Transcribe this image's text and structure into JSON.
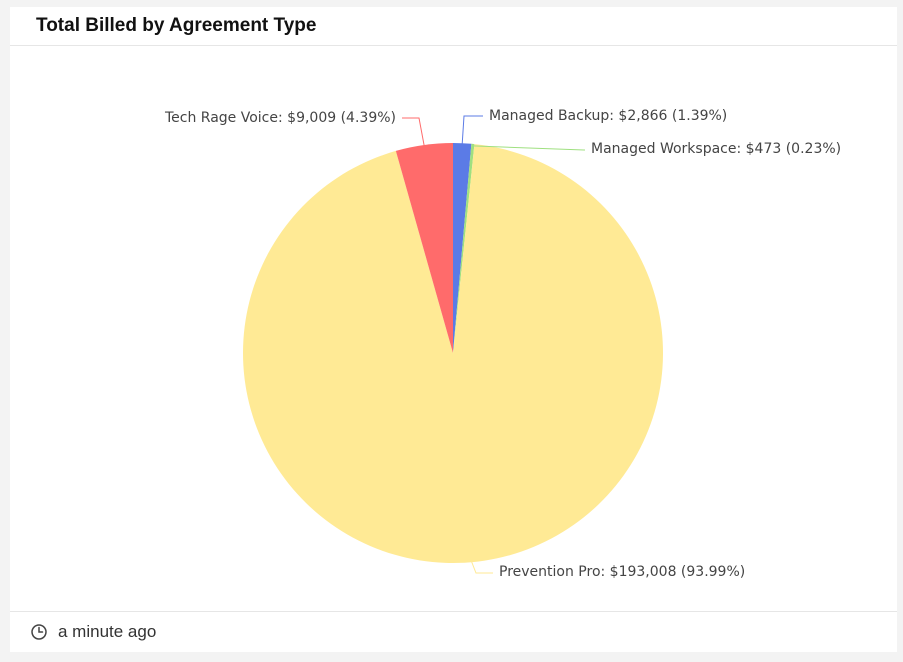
{
  "card": {
    "title": "Total Billed by Agreement Type"
  },
  "footer": {
    "updated_text": "a minute ago",
    "icon": "clock-icon"
  },
  "chart_data": {
    "type": "pie",
    "title": "Total Billed by Agreement Type",
    "start_angle_deg": 0,
    "direction": "clockwise",
    "slices": [
      {
        "name": "Managed Backup",
        "value": 2866,
        "percent": 1.39,
        "label": "Managed Backup: $2,866 (1.39%)",
        "color": "#5b7be6"
      },
      {
        "name": "Managed Workspace",
        "value": 473,
        "percent": 0.23,
        "label": "Managed Workspace: $473 (0.23%)",
        "color": "#9fe080"
      },
      {
        "name": "Prevention Pro",
        "value": 193008,
        "percent": 93.99,
        "label": "Prevention Pro: $193,008 (93.99%)",
        "color": "#ffea95"
      },
      {
        "name": "Tech Rage Voice",
        "value": 9009,
        "percent": 4.39,
        "label": "Tech Rage Voice: $9,009 (4.39%)",
        "color": "#ff6b6b"
      }
    ]
  }
}
